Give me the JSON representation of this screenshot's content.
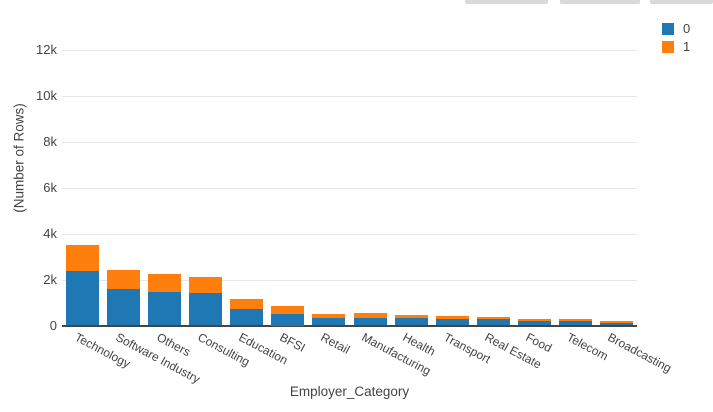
{
  "chart_data": {
    "type": "bar",
    "stacked": true,
    "title": "",
    "xlabel": "Employer_Category",
    "ylabel": "(Number of Rows)",
    "categories": [
      "Technology",
      "Software Industry",
      "Others",
      "Consulting",
      "Education",
      "BFSI",
      "Retail",
      "Manufacturing",
      "Health",
      "Transport",
      "Real Estate",
      "Food",
      "Telecom",
      "Broadcasting"
    ],
    "series": [
      {
        "name": "0",
        "color": "#1f77b4",
        "values": [
          2350,
          1600,
          1450,
          1400,
          720,
          500,
          310,
          310,
          310,
          280,
          270,
          180,
          180,
          100
        ]
      },
      {
        "name": "1",
        "color": "#ff7f0e",
        "values": [
          1150,
          800,
          780,
          700,
          450,
          350,
          190,
          220,
          160,
          130,
          110,
          100,
          90,
          80
        ]
      }
    ],
    "yticks": [
      {
        "label": "0",
        "value": 0
      },
      {
        "label": "2k",
        "value": 2000
      },
      {
        "label": "4k",
        "value": 4000
      },
      {
        "label": "6k",
        "value": 6000
      },
      {
        "label": "8k",
        "value": 8000
      },
      {
        "label": "10k",
        "value": 10000
      },
      {
        "label": "12k",
        "value": 12000
      }
    ],
    "ylim": [
      0,
      13000
    ],
    "grid": "horizontal",
    "legend_position": "top-right",
    "colors": {
      "series0": "#1f77b4",
      "series1": "#ff7f0e",
      "grid": "#e8e8e8",
      "axis": "#444444",
      "text": "#444444",
      "toolbar_button": "#d9d9d9"
    }
  }
}
